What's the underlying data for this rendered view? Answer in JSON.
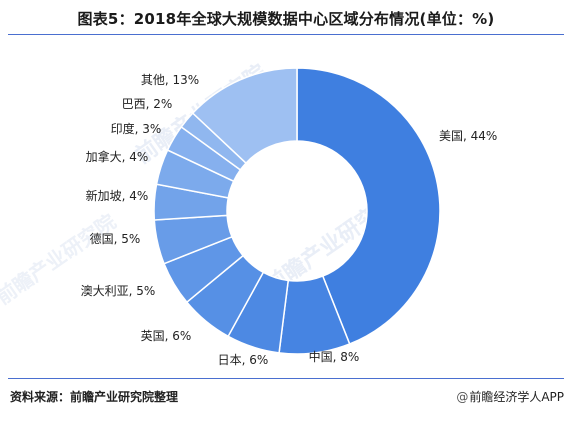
{
  "title": "图表5：2018年全球大规模数据中心区域分布情况(单位：%)",
  "source": "资料来源：前瞻产业研究院整理",
  "credit": "前瞻经济学人APP",
  "watermark": "前瞻产业研究院",
  "colors": {
    "primary": "#3f7fe0",
    "slice_light": "#9ec0f2",
    "accent_line": "#4a6fd0"
  },
  "chart_data": {
    "type": "pie",
    "donut": true,
    "start_angle_deg": 0,
    "direction": "clockwise",
    "categories": [
      "美国",
      "中国",
      "日本",
      "英国",
      "澳大利亚",
      "德国",
      "新加坡",
      "加拿大",
      "印度",
      "巴西",
      "其他"
    ],
    "values": [
      44,
      8,
      6,
      6,
      5,
      5,
      4,
      4,
      3,
      2,
      13
    ],
    "unit": "%",
    "labels": [
      "美国, 44%",
      "中国, 8%",
      "日本, 6%",
      "英国, 6%",
      "澳大利亚, 5%",
      "德国, 5%",
      "新加坡, 4%",
      "加拿大, 4%",
      "印度, 3%",
      "巴西, 2%",
      "其他, 13%"
    ],
    "colors": [
      "#3f7fe0",
      "#4684e2",
      "#4d89e3",
      "#5690e5",
      "#5f96e7",
      "#689ce8",
      "#72a3ea",
      "#7caaec",
      "#86b0ee",
      "#90b7ef",
      "#9ec0f2"
    ]
  }
}
